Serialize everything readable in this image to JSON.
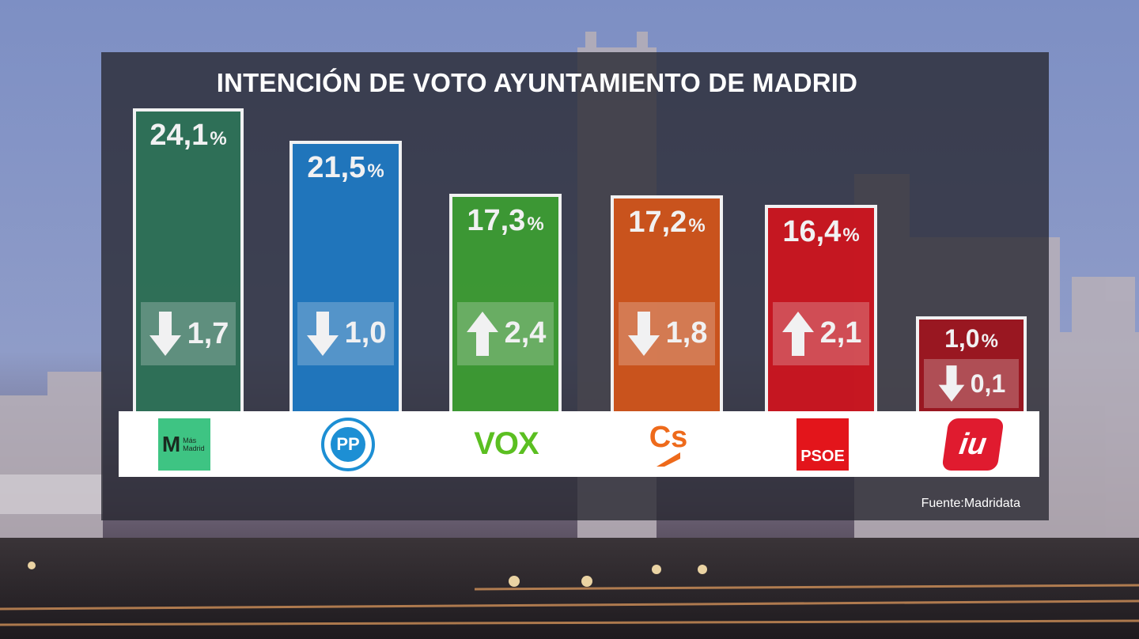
{
  "chart_data": {
    "type": "bar",
    "title": "INTENCIÓN DE VOTO AYUNTAMIENTO DE MADRID",
    "categories": [
      "Más Madrid",
      "PP",
      "VOX",
      "Cs",
      "PSOE",
      "IU"
    ],
    "values": [
      24.1,
      21.5,
      17.3,
      17.2,
      16.4,
      1.0
    ],
    "value_labels": [
      "24,1",
      "21,5",
      "17,3",
      "17,2",
      "16,4",
      "1,0"
    ],
    "percent_sign": "%",
    "changes": [
      {
        "direction": "down",
        "label": "1,7",
        "value": -1.7
      },
      {
        "direction": "down",
        "label": "1,0",
        "value": -1.0
      },
      {
        "direction": "up",
        "label": "2,4",
        "value": 2.4
      },
      {
        "direction": "down",
        "label": "1,8",
        "value": -1.8
      },
      {
        "direction": "up",
        "label": "2,1",
        "value": 2.1
      },
      {
        "direction": "down",
        "label": "0,1",
        "value": -0.1
      }
    ],
    "colors": [
      "#2e7358",
      "#1e7ac4",
      "#3d9e32",
      "#d4551a",
      "#d0141e",
      "#a0141e"
    ],
    "source": "Fuente:Madridata"
  },
  "logos": [
    {
      "icon": "mas-madrid-logo",
      "text_mark": "M",
      "text": "Más Madrid",
      "color": "#3ec483"
    },
    {
      "icon": "pp-logo",
      "text": "PP",
      "color": "#1d8fd4"
    },
    {
      "icon": "vox-logo",
      "text": "VOX",
      "color": "#5bbf21"
    },
    {
      "icon": "cs-logo",
      "text": "Cs",
      "color": "#ee6a1b"
    },
    {
      "icon": "psoe-logo",
      "text": "PSOE",
      "color": "#e3151b"
    },
    {
      "icon": "iu-logo",
      "text": "iu",
      "color": "#e01b2f"
    }
  ]
}
